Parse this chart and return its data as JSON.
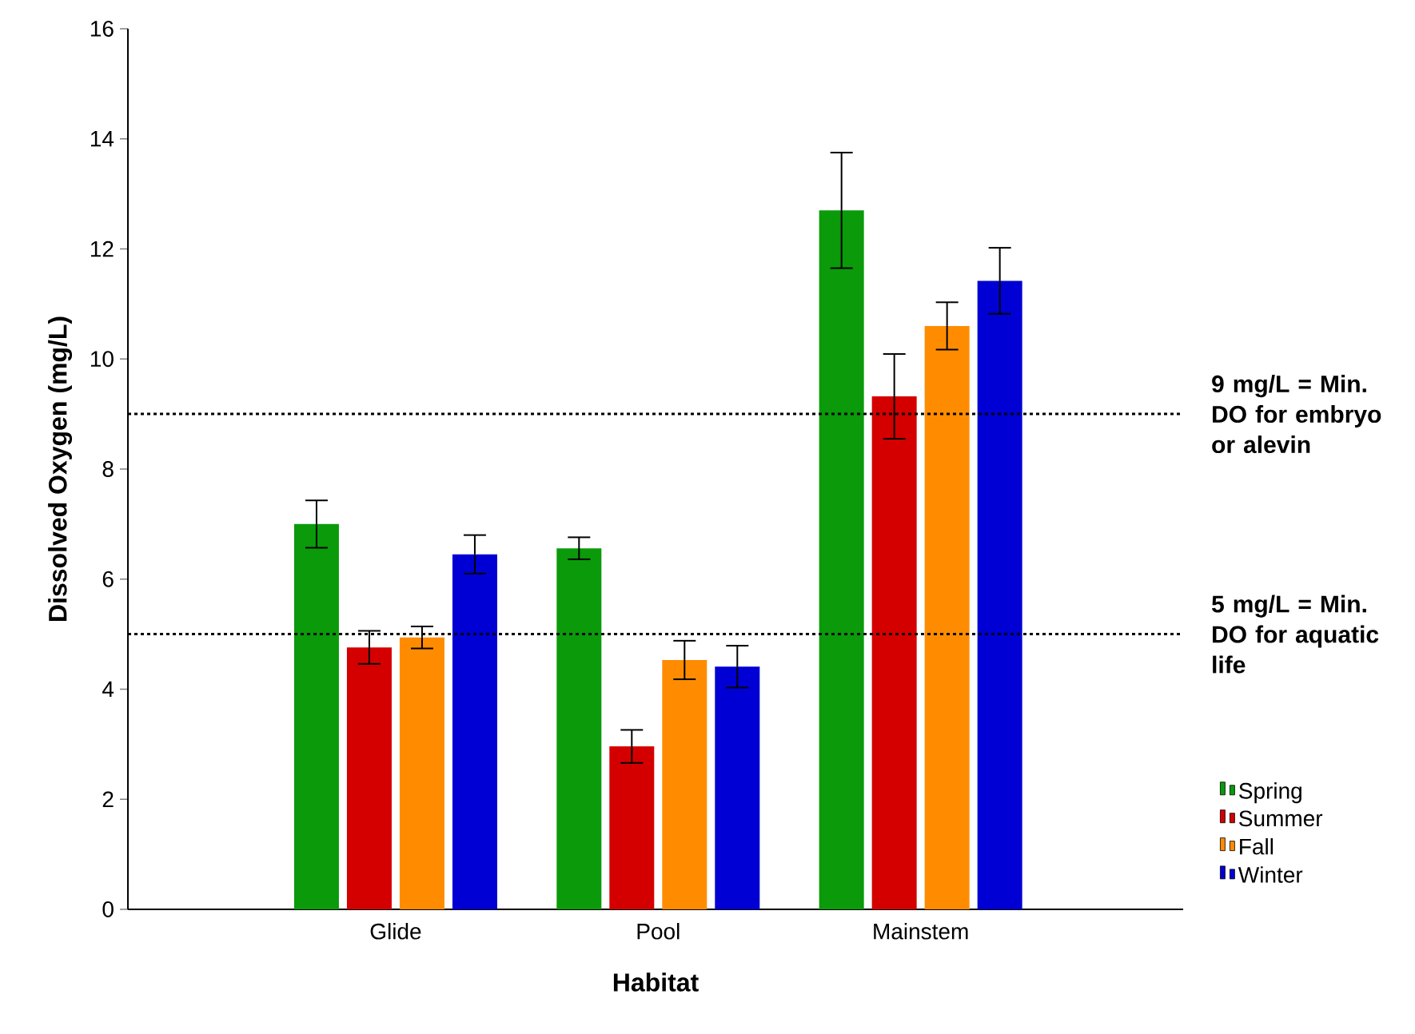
{
  "chart_data": {
    "type": "bar",
    "xlabel": "Habitat",
    "ylabel": "Dissolved Oxygen (mg/L)",
    "categories": [
      "Glide",
      "Pool",
      "Mainstem"
    ],
    "series": [
      {
        "name": "Spring",
        "color": "#0a9a0a",
        "values": [
          7.0,
          6.56,
          12.7
        ],
        "errors": [
          0.43,
          0.2,
          1.05
        ]
      },
      {
        "name": "Summer",
        "color": "#d40000",
        "values": [
          4.76,
          2.96,
          9.32
        ],
        "errors": [
          0.3,
          0.3,
          0.77
        ]
      },
      {
        "name": "Fall",
        "color": "#ff8c00",
        "values": [
          4.94,
          4.53,
          10.6
        ],
        "errors": [
          0.2,
          0.35,
          0.43
        ]
      },
      {
        "name": "Winter",
        "color": "#0000d4",
        "values": [
          6.45,
          4.41,
          11.42
        ],
        "errors": [
          0.35,
          0.38,
          0.6
        ]
      }
    ],
    "ylim": [
      0,
      16
    ],
    "yticks": [
      0,
      2,
      4,
      6,
      8,
      10,
      12,
      14,
      16
    ],
    "ref_lines": [
      {
        "axis": "y",
        "value": 9,
        "label": "9 mg/L = Min. DO for embryo or alevin",
        "line_style": "dotted"
      },
      {
        "axis": "y",
        "value": 5,
        "label": "5 mg/L = Min. DO for aquatic life",
        "line_style": "dotted"
      }
    ],
    "legend": "bottom right"
  }
}
